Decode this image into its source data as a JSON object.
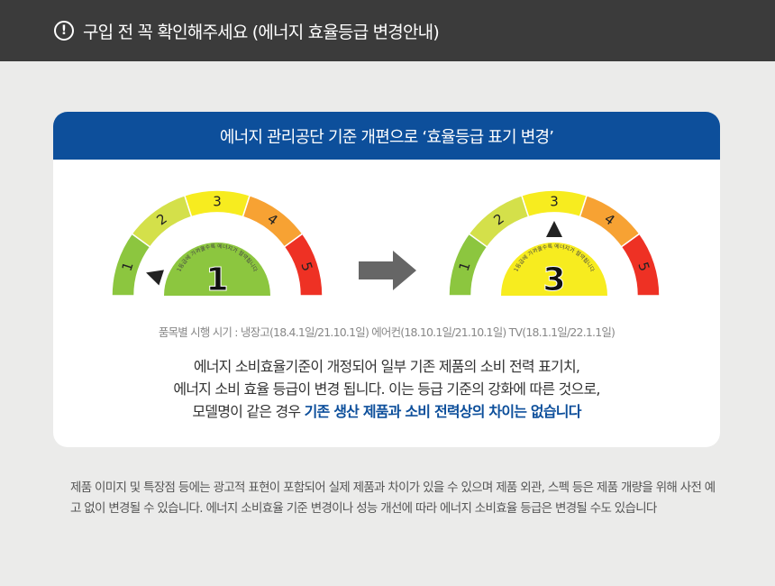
{
  "header": {
    "icon": "exclamation-circle-icon",
    "title": "구입 전 꼭 확인해주세요 (에너지 효율등급 변경안내)"
  },
  "card": {
    "title": "에너지 관리공단 기준 개편으로 ‘효율등급 표기 변경’",
    "gauge_caption": "1등급에 가까울수록 에너지가 절약됩니다",
    "gauge_colors": [
      "#8cc63f",
      "#d4e04a",
      "#f7ec1f",
      "#f7a233",
      "#ee3124"
    ],
    "grade_labels": [
      "1",
      "2",
      "3",
      "4",
      "5"
    ],
    "before": {
      "grade": "1",
      "grade_value": 1
    },
    "after": {
      "grade": "3",
      "grade_value": 3
    },
    "schedule": "품목별 시행 시기 : 냉장고(18.4.1일/21.10.1일) 에어컨(18.10.1일/21.10.1일) TV(18.1.1일/22.1.1일)",
    "desc_line1": "에너지 소비효율기준이 개정되어 일부 기존 제품의 소비 전력 표기치,",
    "desc_line2": "에너지 소비 효율 등급이 변경 됩니다. 이는 등급 기준의 강화에 따른 것으로,",
    "desc_line3a": "모델명이 같은 경우 ",
    "desc_line3b": "기존 생산 제품과 소비 전력상의 차이는 없습니다"
  },
  "footer": {
    "note": "제품 이미지 및 특장점 등에는 광고적 표현이 포함되어 실제 제품과 차이가 있을 수 있으며 제품 외관, 스펙 등은 제품 개량을 위해 사전 예고 없이 변경될 수 있습니다.  에너지 소비효율 기준 변경이나 성능 개선에 따라 에너지 소비효율 등급은 변경될 수도 있습니다"
  }
}
